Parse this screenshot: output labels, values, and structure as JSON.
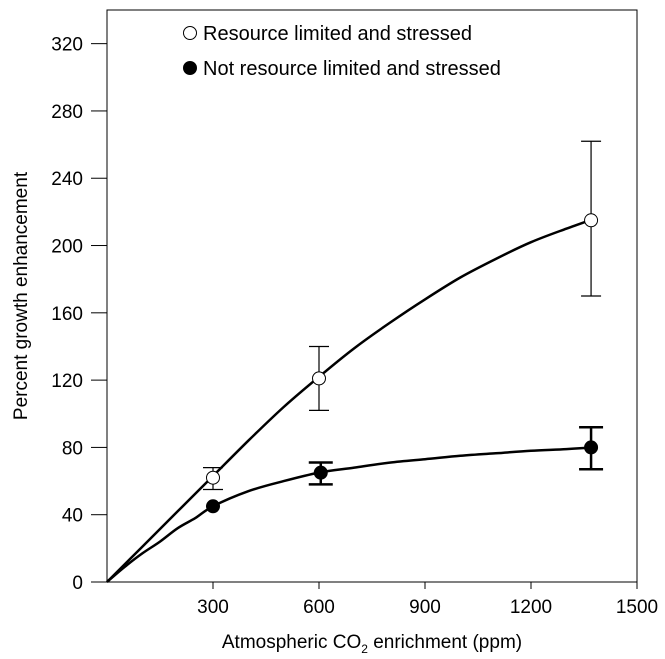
{
  "chart_data": {
    "type": "scatter",
    "title": "",
    "xlabel_prefix": "Atmospheric CO",
    "xlabel_subscript": "2",
    "xlabel_suffix": " enrichment (ppm)",
    "ylabel": "Percent growth enhancement",
    "xlim": [
      0,
      1500
    ],
    "ylim": [
      0,
      340
    ],
    "xticks": [
      300,
      600,
      900,
      1200,
      1500
    ],
    "yticks": [
      0,
      40,
      80,
      120,
      160,
      200,
      240,
      280,
      320
    ],
    "grid": false,
    "legend_position": "top-left",
    "series": [
      {
        "name": "Resource limited and stressed",
        "marker": "open-circle",
        "color": "#000000",
        "x": [
          300,
          600,
          1370
        ],
        "y": [
          62,
          121,
          215
        ],
        "err_low": [
          55,
          102,
          170
        ],
        "err_high": [
          68,
          140,
          262
        ],
        "curve": [
          [
            0,
            0
          ],
          [
            100,
            21
          ],
          [
            200,
            42
          ],
          [
            300,
            63
          ],
          [
            400,
            84
          ],
          [
            500,
            104
          ],
          [
            600,
            122
          ],
          [
            700,
            139
          ],
          [
            800,
            154
          ],
          [
            900,
            168
          ],
          [
            1000,
            181
          ],
          [
            1100,
            192
          ],
          [
            1200,
            202
          ],
          [
            1300,
            210
          ],
          [
            1380,
            216
          ]
        ]
      },
      {
        "name": "Not resource limited and stressed",
        "marker": "filled-circle",
        "color": "#000000",
        "x": [
          300,
          605,
          1370
        ],
        "y": [
          45,
          65,
          80
        ],
        "err_low": [
          45,
          58,
          67
        ],
        "err_high": [
          45,
          71,
          92
        ],
        "curve": [
          [
            0,
            0
          ],
          [
            50,
            9
          ],
          [
            100,
            17
          ],
          [
            150,
            24
          ],
          [
            200,
            32
          ],
          [
            250,
            38
          ],
          [
            300,
            45
          ],
          [
            400,
            54
          ],
          [
            500,
            60
          ],
          [
            600,
            65
          ],
          [
            700,
            68
          ],
          [
            800,
            71
          ],
          [
            900,
            73
          ],
          [
            1000,
            75
          ],
          [
            1100,
            76.5
          ],
          [
            1200,
            78
          ],
          [
            1300,
            79
          ],
          [
            1380,
            80
          ]
        ]
      }
    ]
  }
}
